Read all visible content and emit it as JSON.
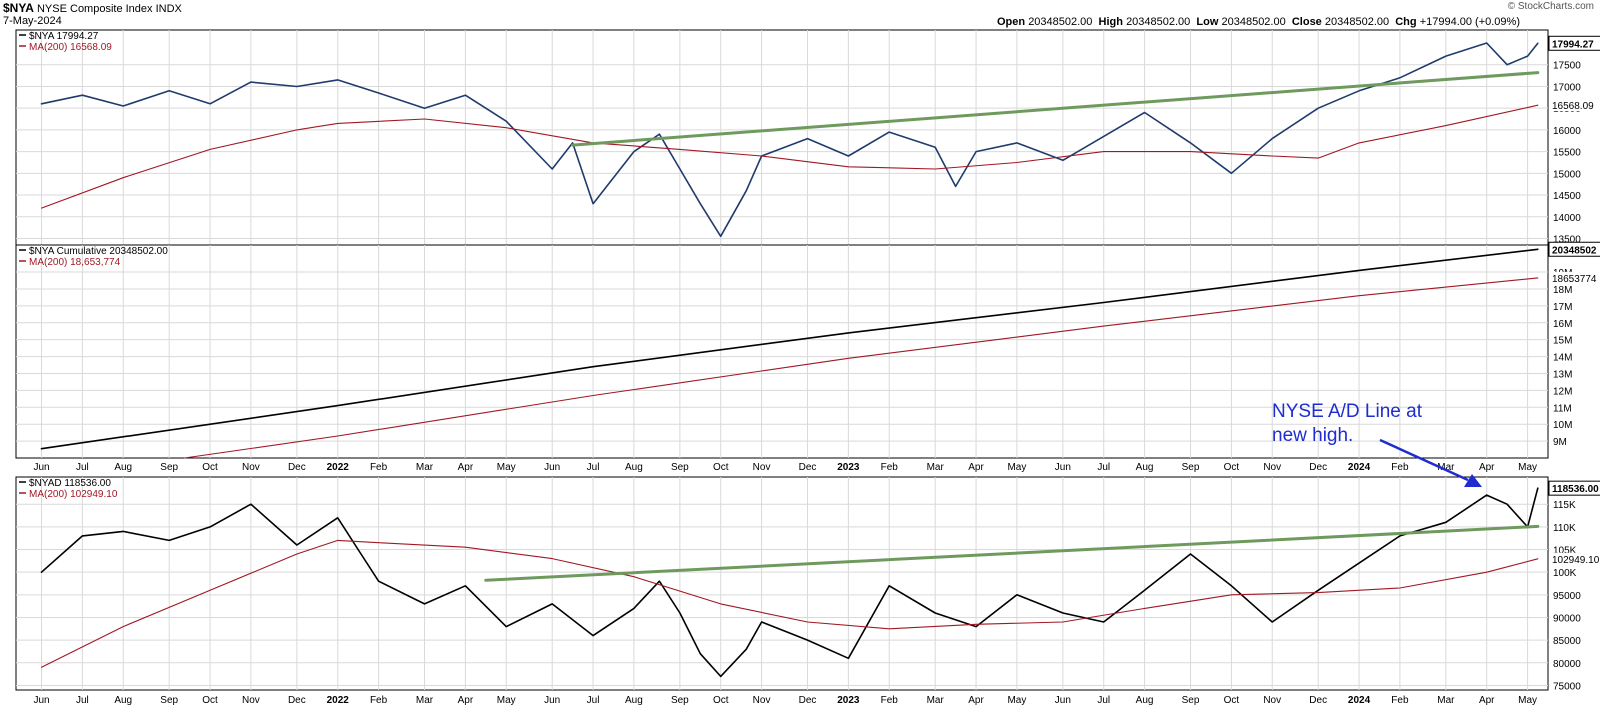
{
  "header": {
    "symbol": "$NYA",
    "name": "NYSE Composite Index",
    "exchange": "INDX",
    "date": "7-May-2024",
    "brand": "© StockCharts.com",
    "ohlc": {
      "open_label": "Open",
      "open": "20348502.00",
      "high_label": "High",
      "high": "20348502.00",
      "low_label": "Low",
      "low": "20348502.00",
      "close_label": "Close",
      "close": "20348502.00",
      "chg_label": "Chg",
      "chg": "+17994.00 (+0.09%)"
    }
  },
  "colors": {
    "price": "#1f3b6b",
    "ma": "#a01824",
    "trend": "#6f9a5e",
    "arrow": "#1f2cd0",
    "black": "#000000"
  },
  "annotation": {
    "line1": "NYSE A/D Line at",
    "line2": "new high."
  },
  "chart_data": [
    {
      "type": "line",
      "panel": "top",
      "legend": [
        {
          "name": "$NYA 17994.27",
          "color": "#000000"
        },
        {
          "name": "MA(200) 16568.09",
          "color": "#a01824"
        }
      ],
      "y_ticks": [
        "17500",
        "17000",
        "16500",
        "16000",
        "15500",
        "15000",
        "14500",
        "14000",
        "13500"
      ],
      "y_tick_values": [
        17500,
        17000,
        16500,
        16000,
        15500,
        15000,
        14500,
        14000,
        13500
      ],
      "ylim": [
        13350,
        18300
      ],
      "last_value_labels": [
        {
          "text": "17994.27",
          "value": 17994.27,
          "style": "boxed"
        },
        {
          "text": "16568.09",
          "value": 16568.09,
          "style": "plain"
        }
      ],
      "series": [
        {
          "name": "$NYA",
          "role": "price",
          "x": [
            2021.42,
            2021.5,
            2021.58,
            2021.67,
            2021.75,
            2021.83,
            2021.92,
            2022.0,
            2022.08,
            2022.17,
            2022.25,
            2022.33,
            2022.42,
            2022.46,
            2022.5,
            2022.58,
            2022.63,
            2022.67,
            2022.71,
            2022.75,
            2022.8,
            2022.83,
            2022.92,
            2023.0,
            2023.08,
            2023.17,
            2023.21,
            2023.25,
            2023.33,
            2023.42,
            2023.5,
            2023.58,
            2023.67,
            2023.75,
            2023.83,
            2023.92,
            2024.0,
            2024.08,
            2024.17,
            2024.25,
            2024.29,
            2024.33,
            2024.35
          ],
          "values": [
            16600,
            16800,
            16550,
            16900,
            16600,
            17100,
            17000,
            17150,
            16850,
            16500,
            16800,
            16200,
            15100,
            15700,
            14300,
            15500,
            15900,
            15100,
            14300,
            13550,
            14600,
            15400,
            15800,
            15400,
            15950,
            15600,
            14700,
            15500,
            15700,
            15300,
            15850,
            16400,
            15700,
            15000,
            15800,
            16500,
            16900,
            17200,
            17700,
            18000,
            17500,
            17700,
            17994.27
          ]
        },
        {
          "name": "MA(200)",
          "role": "ma",
          "x": [
            2021.42,
            2021.58,
            2021.75,
            2021.92,
            2022.0,
            2022.17,
            2022.33,
            2022.5,
            2022.67,
            2022.83,
            2023.0,
            2023.17,
            2023.33,
            2023.5,
            2023.67,
            2023.83,
            2023.92,
            2024.0,
            2024.17,
            2024.35
          ],
          "values": [
            14200,
            14900,
            15550,
            16000,
            16150,
            16250,
            16050,
            15700,
            15550,
            15400,
            15150,
            15100,
            15250,
            15500,
            15500,
            15400,
            15350,
            15700,
            16100,
            16568.09
          ]
        },
        {
          "name": "Trendline",
          "role": "trend",
          "x": [
            2022.46,
            2024.35
          ],
          "values": [
            15650,
            17320
          ]
        }
      ]
    },
    {
      "type": "line",
      "panel": "middle",
      "legend": [
        {
          "name": "$NYA Cumulative 20348502.00",
          "color": "#000000"
        },
        {
          "name": "MA(200) 18,653,774",
          "color": "#a01824"
        }
      ],
      "y_ticks": [
        "19M",
        "18M",
        "17M",
        "16M",
        "15M",
        "14M",
        "13M",
        "12M",
        "11M",
        "10M",
        "9M"
      ],
      "y_tick_values": [
        19000000,
        18000000,
        17000000,
        16000000,
        15000000,
        14000000,
        13000000,
        12000000,
        11000000,
        10000000,
        9000000
      ],
      "ylim": [
        8000000,
        20600000
      ],
      "last_value_labels": [
        {
          "text": "20348502",
          "value": 20348502,
          "style": "boxed"
        },
        {
          "text": "18653774",
          "value": 18653774,
          "style": "plain"
        }
      ],
      "series": [
        {
          "name": "$NYA Cumulative",
          "role": "cum",
          "x": [
            2021.42,
            2022.0,
            2022.5,
            2023.0,
            2023.5,
            2024.0,
            2024.35
          ],
          "values": [
            8550000,
            11100000,
            13400000,
            15400000,
            17200000,
            19100000,
            20348502
          ]
        },
        {
          "name": "MA(200)",
          "role": "ma",
          "x": [
            2021.7,
            2022.0,
            2022.5,
            2023.0,
            2023.5,
            2024.0,
            2024.35
          ],
          "values": [
            8000000,
            9300000,
            11700000,
            13900000,
            15800000,
            17600000,
            18653774
          ]
        }
      ]
    },
    {
      "type": "line",
      "panel": "bottom",
      "legend": [
        {
          "name": "$NYAD 118536.00",
          "color": "#000000"
        },
        {
          "name": "MA(200) 102949.10",
          "color": "#a01824"
        }
      ],
      "y_ticks": [
        "115K",
        "110K",
        "105K",
        "100K",
        "95000",
        "90000",
        "85000",
        "80000",
        "75000"
      ],
      "y_tick_values": [
        115000,
        110000,
        105000,
        100000,
        95000,
        90000,
        85000,
        80000,
        75000
      ],
      "ylim": [
        74000,
        121000
      ],
      "last_value_labels": [
        {
          "text": "118536.00",
          "value": 118536,
          "style": "boxed"
        },
        {
          "text": "102949.10",
          "value": 102949.1,
          "style": "plain"
        }
      ],
      "series": [
        {
          "name": "$NYAD",
          "role": "ad",
          "x": [
            2021.42,
            2021.5,
            2021.58,
            2021.67,
            2021.75,
            2021.83,
            2021.92,
            2022.0,
            2022.04,
            2022.08,
            2022.17,
            2022.25,
            2022.33,
            2022.42,
            2022.5,
            2022.58,
            2022.63,
            2022.67,
            2022.71,
            2022.75,
            2022.8,
            2022.83,
            2022.92,
            2023.0,
            2023.08,
            2023.17,
            2023.25,
            2023.33,
            2023.42,
            2023.5,
            2023.58,
            2023.67,
            2023.75,
            2023.83,
            2023.92,
            2024.0,
            2024.08,
            2024.17,
            2024.25,
            2024.29,
            2024.33,
            2024.35
          ],
          "values": [
            100000,
            108000,
            109000,
            107000,
            110000,
            115000,
            106000,
            112000,
            105000,
            98000,
            93000,
            97000,
            88000,
            93000,
            86000,
            92000,
            98000,
            91000,
            82000,
            77000,
            83000,
            89000,
            85000,
            81000,
            97000,
            91000,
            88000,
            95000,
            91000,
            89000,
            96000,
            104000,
            97000,
            89000,
            96000,
            102000,
            108000,
            111000,
            117000,
            115000,
            110000,
            118536
          ]
        },
        {
          "name": "MA(200)",
          "role": "ma",
          "x": [
            2021.42,
            2021.58,
            2021.75,
            2021.92,
            2022.0,
            2022.08,
            2022.25,
            2022.42,
            2022.58,
            2022.75,
            2022.92,
            2023.08,
            2023.25,
            2023.42,
            2023.58,
            2023.75,
            2023.92,
            2024.08,
            2024.25,
            2024.35
          ],
          "values": [
            79000,
            88000,
            96000,
            104000,
            107000,
            106500,
            105500,
            103000,
            99000,
            93000,
            89000,
            87500,
            88500,
            89000,
            92000,
            95000,
            95500,
            96500,
            100000,
            102949.1
          ]
        },
        {
          "name": "Trendline",
          "role": "trend",
          "x": [
            2022.29,
            2024.35
          ],
          "values": [
            98200,
            110100
          ]
        }
      ]
    }
  ],
  "x_axis": {
    "labels": [
      {
        "text": "Jun",
        "x": 2021.42,
        "bold": false
      },
      {
        "text": "Jul",
        "x": 2021.5,
        "bold": false
      },
      {
        "text": "Aug",
        "x": 2021.58,
        "bold": false
      },
      {
        "text": "Sep",
        "x": 2021.67,
        "bold": false
      },
      {
        "text": "Oct",
        "x": 2021.75,
        "bold": false
      },
      {
        "text": "Nov",
        "x": 2021.83,
        "bold": false
      },
      {
        "text": "Dec",
        "x": 2021.92,
        "bold": false
      },
      {
        "text": "2022",
        "x": 2022.0,
        "bold": true
      },
      {
        "text": "Feb",
        "x": 2022.08,
        "bold": false
      },
      {
        "text": "Mar",
        "x": 2022.17,
        "bold": false
      },
      {
        "text": "Apr",
        "x": 2022.25,
        "bold": false
      },
      {
        "text": "May",
        "x": 2022.33,
        "bold": false
      },
      {
        "text": "Jun",
        "x": 2022.42,
        "bold": false
      },
      {
        "text": "Jul",
        "x": 2022.5,
        "bold": false
      },
      {
        "text": "Aug",
        "x": 2022.58,
        "bold": false
      },
      {
        "text": "Sep",
        "x": 2022.67,
        "bold": false
      },
      {
        "text": "Oct",
        "x": 2022.75,
        "bold": false
      },
      {
        "text": "Nov",
        "x": 2022.83,
        "bold": false
      },
      {
        "text": "Dec",
        "x": 2022.92,
        "bold": false
      },
      {
        "text": "2023",
        "x": 2023.0,
        "bold": true
      },
      {
        "text": "Feb",
        "x": 2023.08,
        "bold": false
      },
      {
        "text": "Mar",
        "x": 2023.17,
        "bold": false
      },
      {
        "text": "Apr",
        "x": 2023.25,
        "bold": false
      },
      {
        "text": "May",
        "x": 2023.33,
        "bold": false
      },
      {
        "text": "Jun",
        "x": 2023.42,
        "bold": false
      },
      {
        "text": "Jul",
        "x": 2023.5,
        "bold": false
      },
      {
        "text": "Aug",
        "x": 2023.58,
        "bold": false
      },
      {
        "text": "Sep",
        "x": 2023.67,
        "bold": false
      },
      {
        "text": "Oct",
        "x": 2023.75,
        "bold": false
      },
      {
        "text": "Nov",
        "x": 2023.83,
        "bold": false
      },
      {
        "text": "Dec",
        "x": 2023.92,
        "bold": false
      },
      {
        "text": "2024",
        "x": 2024.0,
        "bold": true
      },
      {
        "text": "Feb",
        "x": 2024.08,
        "bold": false
      },
      {
        "text": "Mar",
        "x": 2024.17,
        "bold": false
      },
      {
        "text": "Apr",
        "x": 2024.25,
        "bold": false
      },
      {
        "text": "May",
        "x": 2024.33,
        "bold": false
      }
    ]
  }
}
